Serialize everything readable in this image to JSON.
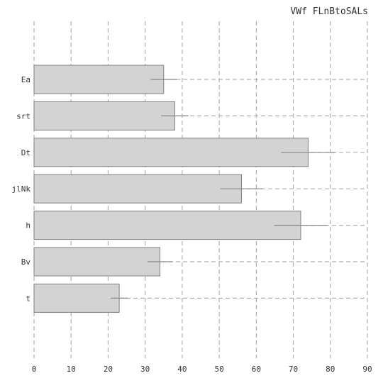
{
  "chart_data": {
    "type": "bar",
    "orientation": "horizontal",
    "title": "VWf FLnBtoSALs",
    "xlabel": "",
    "ylabel": "",
    "categories": [
      "Ea",
      "srt",
      "Dt",
      "jlNk",
      "h",
      "Bv",
      "t"
    ],
    "values": [
      35,
      38,
      74,
      56,
      72,
      34,
      23
    ],
    "error_low": [
      31.5,
      34.3,
      66.7,
      50.3,
      64.8,
      30.6,
      20.7
    ],
    "error_high": [
      38.5,
      41.7,
      81.3,
      61.7,
      79.2,
      37.4,
      25.3
    ],
    "xlim": [
      0,
      90
    ],
    "xticks": [
      0,
      10,
      20,
      30,
      40,
      50,
      60,
      70,
      80,
      90
    ],
    "grid": true,
    "colors": {
      "bar_fill": "#d3d3d3",
      "bar_stroke": "#808080",
      "grid": "#b0b0b0",
      "errorbar": "#888888"
    }
  }
}
